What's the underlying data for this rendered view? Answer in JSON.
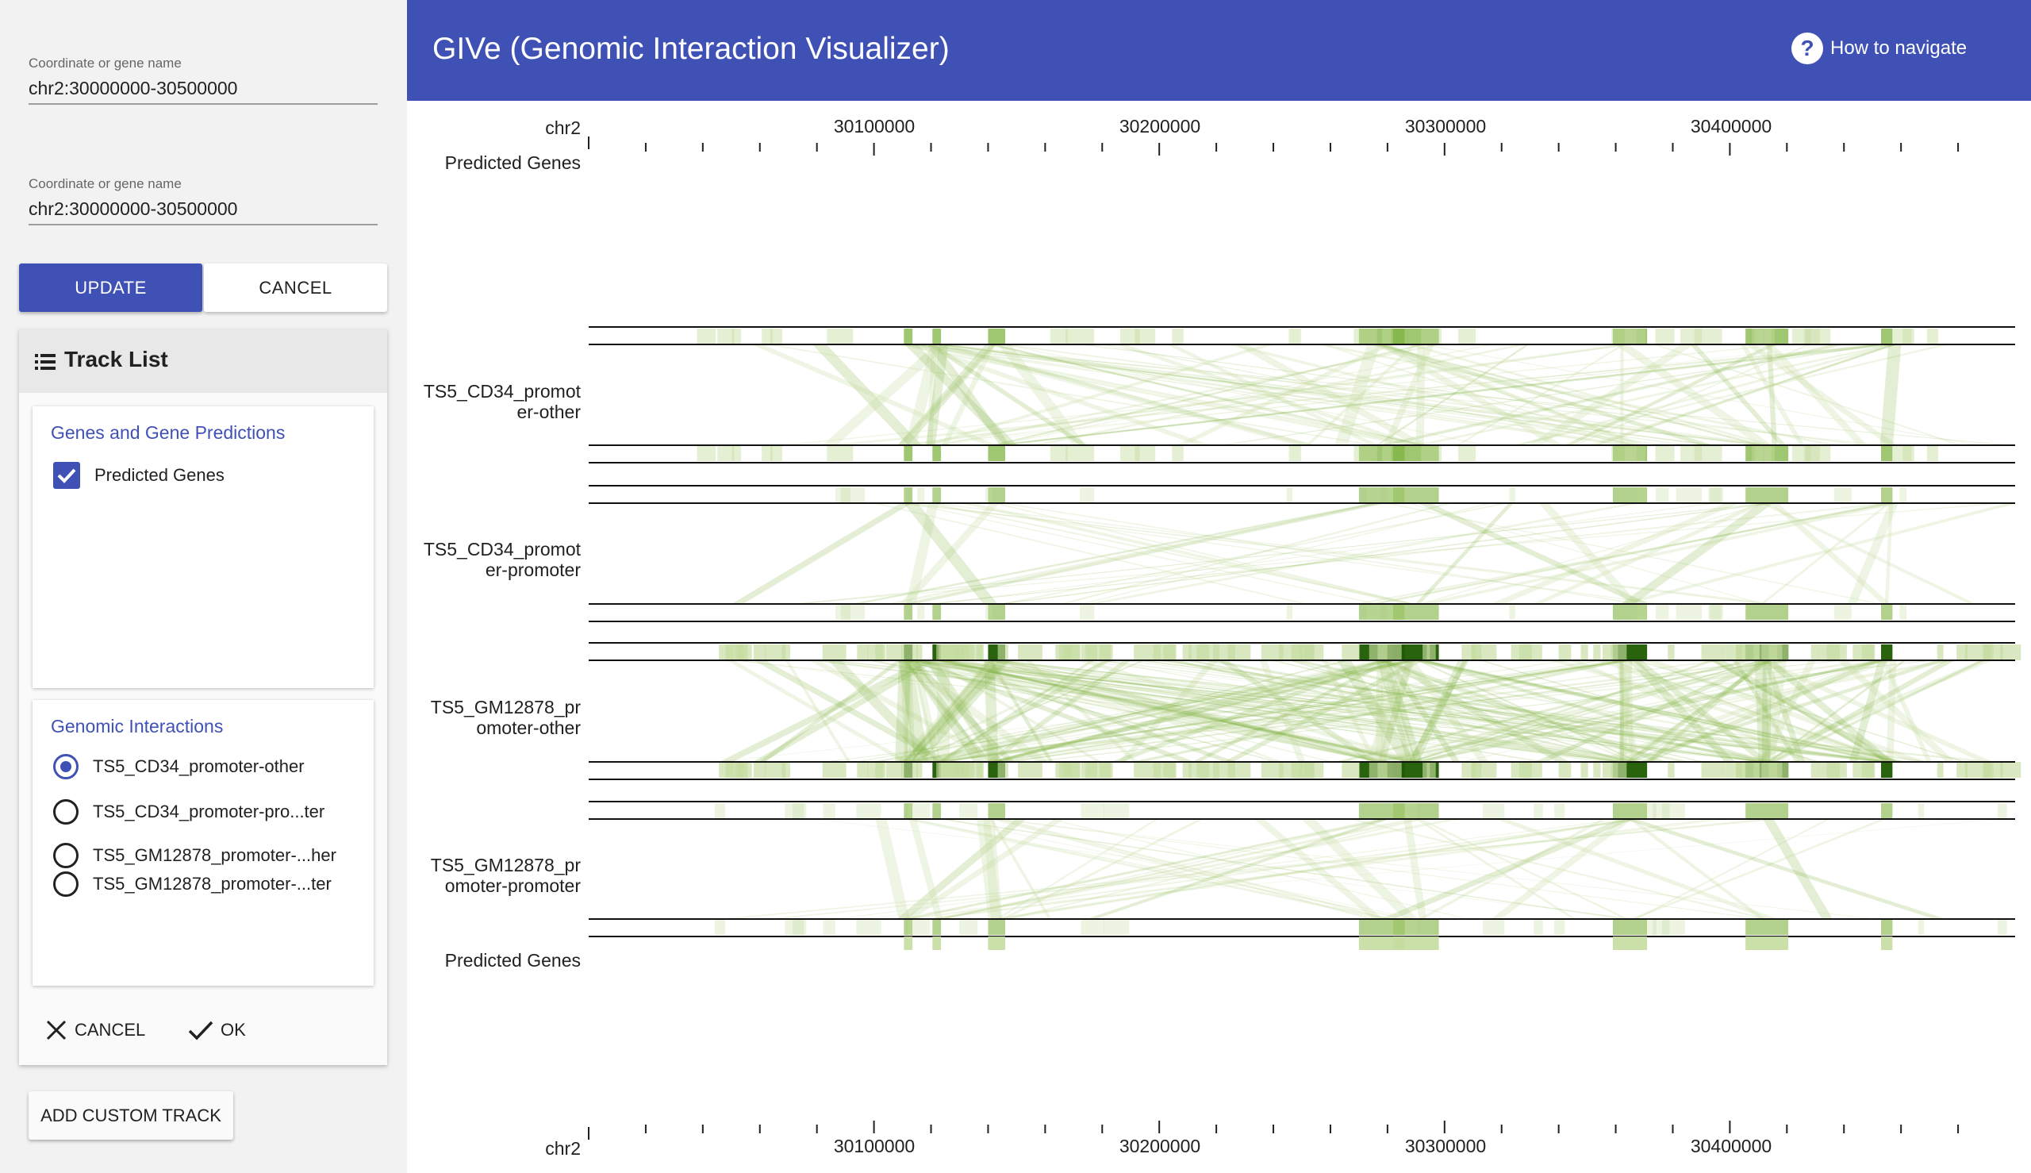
{
  "search": {
    "field1": {
      "label": "Coordinate or gene name",
      "value": "chr2:30000000-30500000"
    },
    "field2": {
      "label": "Coordinate or gene name",
      "value": "chr2:30000000-30500000"
    },
    "update_label": "UPDATE",
    "cancel_label": "CANCEL"
  },
  "track_list": {
    "title": "Track List",
    "icon": "list-icon",
    "groups": [
      {
        "title": "Genes and Gene Predictions",
        "items": [
          {
            "label": "Predicted Genes",
            "checked": true
          }
        ]
      },
      {
        "title": "Genomic Interactions",
        "items": [
          {
            "label": "TS5_CD34_promoter-other",
            "selected": true
          },
          {
            "label": "TS5_CD34_promoter-pro...ter",
            "selected": false
          },
          {
            "label": "TS5_GM12878_promoter-...her",
            "selected": false
          },
          {
            "label": "TS5_GM12878_promoter-...ter",
            "selected": false
          }
        ]
      }
    ],
    "cancel_label": "CANCEL",
    "ok_label": "OK"
  },
  "add_custom_track_label": "ADD CUSTOM TRACK",
  "header": {
    "title": "GIVe (Genomic Interaction Visualizer)",
    "help_label": "How to navigate",
    "background": "#3f51b5"
  },
  "viewer": {
    "chromosome": "chr2",
    "range_start": 30000000,
    "range_end": 30500000,
    "ticks": [
      "30100000",
      "30200000",
      "30300000",
      "30400000"
    ],
    "tracks": {
      "top_genes": "Predicted Genes",
      "cd34_po": [
        "TS5_CD34_promot",
        "er-other"
      ],
      "cd34_pp": [
        "TS5_CD34_promot",
        "er-promoter"
      ],
      "gm_po": [
        "TS5_GM12878_pr",
        "omoter-other"
      ],
      "gm_pp": [
        "TS5_GM12878_pr",
        "omoter-promoter"
      ],
      "bottom_genes": "Predicted Genes"
    },
    "colors": {
      "interaction_light": "#c5dca0",
      "interaction_mid": "#7fb341",
      "interaction_dark": "#1e5a00"
    }
  }
}
